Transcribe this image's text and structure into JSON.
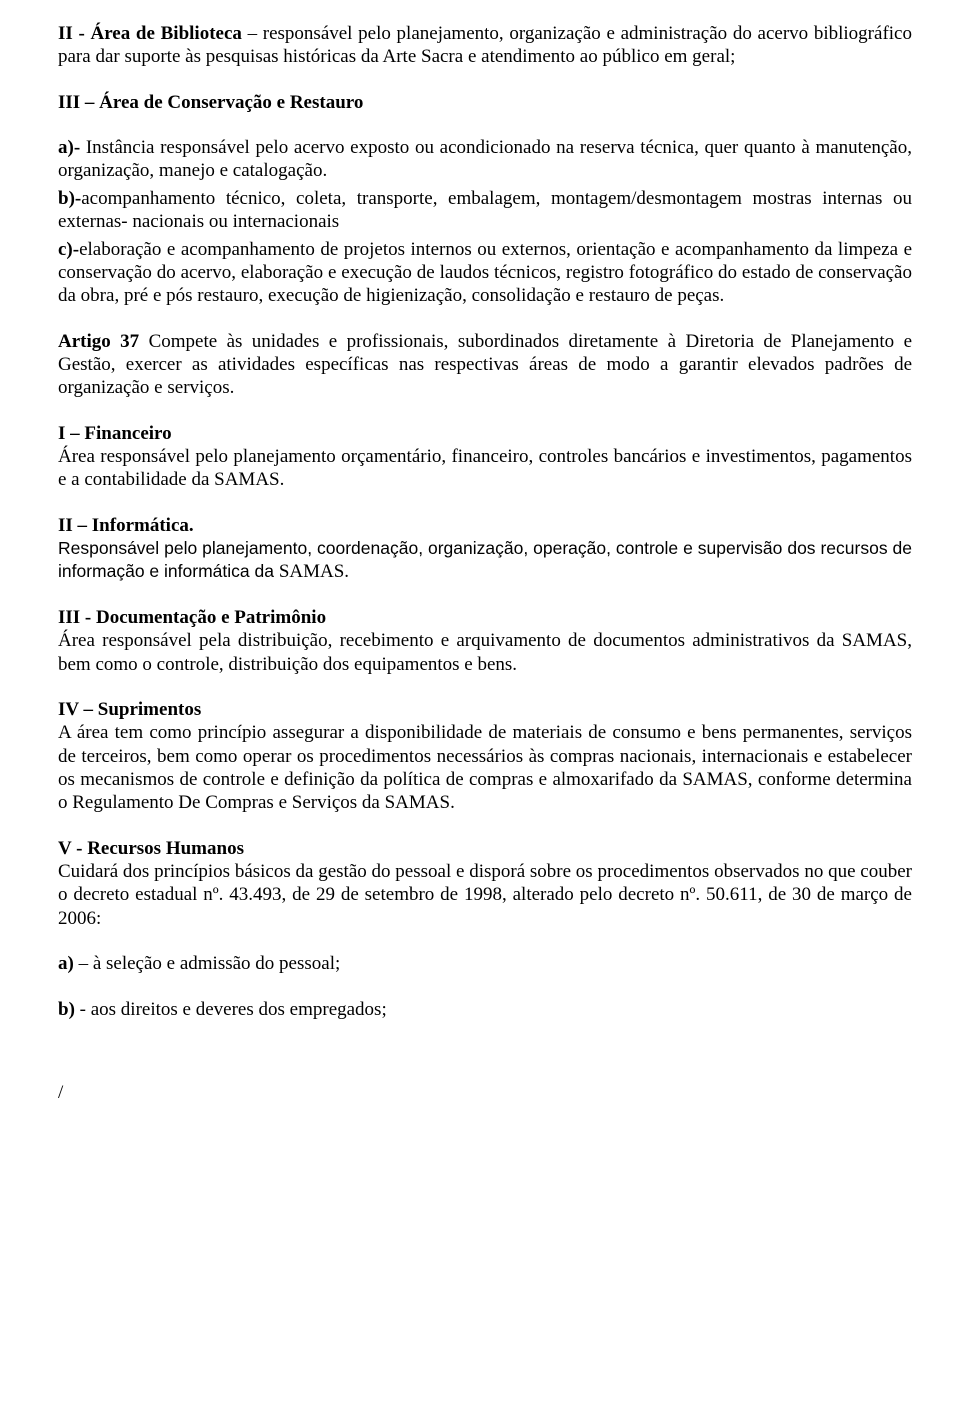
{
  "p1_a": "II - Área de Biblioteca",
  "p1_b": " – responsável pelo planejamento, organização e administração do acervo bibliográfico para dar suporte às pesquisas históricas da Arte Sacra e atendimento ao público em geral;",
  "p2": "III – Área de Conservação e Restauro",
  "p3_a": "a)-",
  "p3_b": " Instância responsável pelo acervo exposto ou acondicionado na reserva técnica, quer quanto à manutenção, organização, manejo e catalogação.",
  "p4_a": "b)-",
  "p4_b": "acompanhamento técnico, coleta, transporte, embalagem, montagem/desmontagem mostras internas ou externas- nacionais ou internacionais",
  "p5_a": "c)-",
  "p5_b": "elaboração e acompanhamento de projetos internos ou externos, orientação e acompanhamento da limpeza e conservação do acervo, elaboração e execução de laudos técnicos, registro fotográfico do estado de conservação da obra, pré e pós restauro, execução de  higienização, consolidação e restauro de peças.",
  "p6_a": "Artigo 37",
  "p6_b": " Compete às unidades e profissionais, subordinados diretamente à Diretoria de Planejamento e Gestão, exercer as atividades específicas nas respectivas áreas de modo a garantir elevados padrões de organização e serviços.",
  "h1": "I – Financeiro",
  "p7": "Área responsável pelo planejamento orçamentário, financeiro, controles bancários e investimentos, pagamentos e a contabilidade da SAMAS.",
  "h2": "II – Informática.",
  "p8_a": "Responsável pelo planejamento, coordenação, organização, operação, controle e supervisão dos recursos de informação e informática da ",
  "p8_b": "SAMAS.",
  "h3": "III - Documentação e Patrimônio",
  "p9": "Área responsável pela distribuição, recebimento e arquivamento de documentos administrativos da SAMAS, bem como o controle, distribuição dos equipamentos e bens.",
  "h4": "IV – Suprimentos",
  "p10": "A área tem como princípio assegurar a disponibilidade de materiais de consumo e bens permanentes, serviços de terceiros, bem como operar os procedimentos necessários às compras nacionais, internacionais e estabelecer os mecanismos de controle e definição da política de compras e almoxarifado da SAMAS, conforme determina o Regulamento De Compras e Serviços da SAMAS.",
  "h5": "V - Recursos Humanos",
  "p11": "Cuidará dos princípios básicos da gestão do pessoal e disporá sobre os procedimentos observados no que couber o decreto estadual nº. 43.493, de 29 de setembro de 1998, alterado pelo decreto nº. 50.611, de 30 de março de 2006:",
  "p12_a": "a)",
  "p12_b": " – à seleção e admissão do pessoal;",
  "p13_a": "b)",
  "p13_b": " - aos direitos e deveres dos empregados;",
  "slash": "/"
}
